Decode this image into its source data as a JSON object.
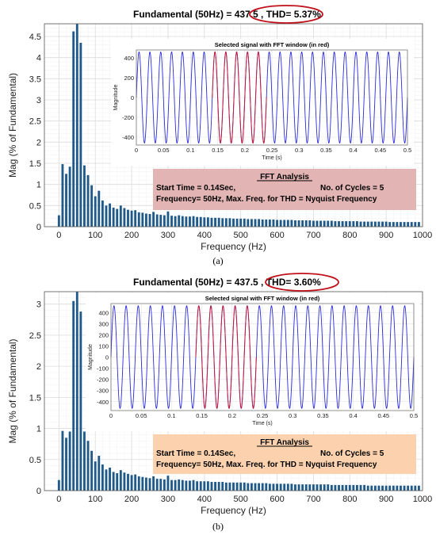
{
  "chart_data": [
    {
      "type": "bar",
      "title_left": "Fundamental (50Hz) = 437.5 ,",
      "title_thd": "THD= 5.37%",
      "xlabel": "Frequency (Hz)",
      "ylabel": "Mag (% of Fundamental)",
      "xlim": [
        -40,
        1000
      ],
      "ylim": [
        0,
        4.8
      ],
      "xticks": [
        0,
        100,
        200,
        300,
        400,
        500,
        600,
        700,
        800,
        900,
        1000
      ],
      "yticks": [
        0,
        0.5,
        1,
        1.5,
        2,
        2.5,
        3,
        3.5,
        4,
        4.5
      ],
      "ytick_labels": [
        "0",
        "0.5",
        "1",
        "1.5",
        "2",
        "2.5",
        "3",
        "3.5",
        "4",
        "4.5"
      ],
      "bar_color": "#1f5a8a",
      "x": [
        0,
        10,
        20,
        30,
        40,
        50,
        60,
        70,
        80,
        90,
        100,
        110,
        120,
        130,
        140,
        150,
        160,
        170,
        180,
        190,
        200,
        210,
        220,
        230,
        240,
        250,
        260,
        270,
        280,
        290,
        300,
        310,
        320,
        330,
        340,
        350,
        360,
        370,
        380,
        390,
        400,
        410,
        420,
        430,
        440,
        450,
        460,
        470,
        480,
        490,
        500,
        510,
        520,
        530,
        540,
        550,
        560,
        570,
        580,
        590,
        600,
        610,
        620,
        630,
        640,
        650,
        660,
        670,
        680,
        690,
        700,
        710,
        720,
        730,
        740,
        750,
        760,
        770,
        780,
        790,
        800,
        810,
        820,
        830,
        840,
        850,
        860,
        870,
        880,
        890,
        900,
        910,
        920,
        930,
        940,
        950,
        960,
        970,
        980,
        990
      ],
      "values": [
        0.27,
        1.48,
        1.25,
        1.42,
        4.62,
        4.8,
        4.35,
        1.45,
        1.22,
        0.98,
        0.72,
        0.85,
        0.62,
        0.5,
        0.55,
        0.45,
        0.42,
        0.5,
        0.44,
        0.4,
        0.38,
        0.39,
        0.34,
        0.33,
        0.31,
        0.3,
        0.35,
        0.29,
        0.28,
        0.27,
        0.36,
        0.26,
        0.25,
        0.27,
        0.25,
        0.24,
        0.24,
        0.25,
        0.23,
        0.23,
        0.22,
        0.22,
        0.21,
        0.21,
        0.21,
        0.2,
        0.2,
        0.2,
        0.19,
        0.19,
        0.19,
        0.19,
        0.18,
        0.18,
        0.18,
        0.18,
        0.17,
        0.17,
        0.17,
        0.17,
        0.16,
        0.16,
        0.16,
        0.16,
        0.16,
        0.15,
        0.15,
        0.15,
        0.15,
        0.15,
        0.14,
        0.14,
        0.14,
        0.14,
        0.14,
        0.14,
        0.13,
        0.13,
        0.13,
        0.13,
        0.13,
        0.13,
        0.13,
        0.12,
        0.12,
        0.12,
        0.12,
        0.12,
        0.12,
        0.12,
        0.12,
        0.11,
        0.11,
        0.11,
        0.11,
        0.11,
        0.11,
        0.11,
        0.11,
        0.11
      ],
      "inset": {
        "title": "Selected signal with FFT window (in red)",
        "xlabel": "Time (s)",
        "ylabel": "Magnitude",
        "xlim": [
          0,
          0.5
        ],
        "ylim": [
          -480,
          480
        ],
        "xticks": [
          "0",
          "0.05",
          "0.1",
          "0.15",
          "0.2",
          "0.25",
          "0.3",
          "0.35",
          "0.4",
          "0.45",
          "0.5"
        ],
        "yticks": [
          "400",
          "200",
          "0",
          "-200",
          "-400"
        ],
        "amplitude": 460,
        "frequency_hz": 50,
        "window_start": 0.14,
        "window_end": 0.24,
        "signal_color": "#2b2bdc",
        "window_color": "#c41a3a"
      },
      "box": {
        "heading": "FFT Analysis",
        "line1_left": "Start Time = 0.14Sec,",
        "line1_right": "No. of Cycles = 5",
        "line2": "Frequency= 50Hz,  Max. Freq. for THD = Nyquist Frequency",
        "background": "#e3b4b4"
      },
      "caption": "(a)"
    },
    {
      "type": "bar",
      "title_left": "Fundamental  (50Hz) = 437.5 ,",
      "title_thd": "THD= 3.60%",
      "xlabel": "Frequency (Hz)",
      "ylabel": "Mag (% of Fundamental)",
      "xlim": [
        -40,
        1000
      ],
      "ylim": [
        0,
        3.2
      ],
      "xticks": [
        0,
        100,
        200,
        300,
        400,
        500,
        600,
        700,
        800,
        900,
        1000
      ],
      "yticks": [
        0,
        0.5,
        1,
        1.5,
        2,
        2.5,
        3
      ],
      "ytick_labels": [
        "0",
        "0.5",
        "1",
        "1.5",
        "2",
        "2.5",
        "3"
      ],
      "bar_color": "#1f5a8a",
      "x": [
        0,
        10,
        20,
        30,
        40,
        50,
        60,
        70,
        80,
        90,
        100,
        110,
        120,
        130,
        140,
        150,
        160,
        170,
        180,
        190,
        200,
        210,
        220,
        230,
        240,
        250,
        260,
        270,
        280,
        290,
        300,
        310,
        320,
        330,
        340,
        350,
        360,
        370,
        380,
        390,
        400,
        410,
        420,
        430,
        440,
        450,
        460,
        470,
        480,
        490,
        500,
        510,
        520,
        530,
        540,
        550,
        560,
        570,
        580,
        590,
        600,
        610,
        620,
        630,
        640,
        650,
        660,
        670,
        680,
        690,
        700,
        710,
        720,
        730,
        740,
        750,
        760,
        770,
        780,
        790,
        800,
        810,
        820,
        830,
        840,
        850,
        860,
        870,
        880,
        890,
        900,
        910,
        920,
        930,
        940,
        950,
        960,
        970,
        980,
        990
      ],
      "values": [
        0.17,
        0.96,
        0.85,
        0.95,
        3.05,
        3.2,
        2.88,
        0.95,
        0.8,
        0.64,
        0.47,
        0.56,
        0.42,
        0.34,
        0.37,
        0.3,
        0.28,
        0.33,
        0.29,
        0.27,
        0.25,
        0.26,
        0.23,
        0.22,
        0.21,
        0.2,
        0.23,
        0.19,
        0.19,
        0.18,
        0.24,
        0.17,
        0.17,
        0.18,
        0.17,
        0.16,
        0.16,
        0.17,
        0.15,
        0.15,
        0.15,
        0.15,
        0.14,
        0.14,
        0.14,
        0.14,
        0.13,
        0.13,
        0.13,
        0.13,
        0.13,
        0.13,
        0.12,
        0.12,
        0.12,
        0.12,
        0.12,
        0.12,
        0.11,
        0.11,
        0.11,
        0.11,
        0.11,
        0.11,
        0.11,
        0.1,
        0.1,
        0.1,
        0.1,
        0.1,
        0.1,
        0.1,
        0.1,
        0.1,
        0.1,
        0.09,
        0.09,
        0.09,
        0.09,
        0.09,
        0.09,
        0.09,
        0.09,
        0.09,
        0.09,
        0.08,
        0.08,
        0.08,
        0.08,
        0.08,
        0.08,
        0.08,
        0.08,
        0.08,
        0.08,
        0.08,
        0.08,
        0.08,
        0.08,
        0.08
      ],
      "inset": {
        "title": "Selected signal with FFT window (in red)",
        "xlabel": "Time (s)",
        "ylabel": "Magnitude",
        "xlim": [
          0,
          0.5
        ],
        "ylim": [
          -480,
          480
        ],
        "xticks": [
          "0",
          "0.05",
          "0.1",
          "0.15",
          "0.2",
          "0.25",
          "0.3",
          "0.35",
          "0.4",
          "0.45",
          "0.5"
        ],
        "yticks": [
          "400",
          "300",
          "200",
          "100",
          "0",
          "-100",
          "-200",
          "-300",
          "-400"
        ],
        "amplitude": 460,
        "frequency_hz": 50,
        "window_start": 0.14,
        "window_end": 0.24,
        "signal_color": "#2b2bdc",
        "window_color": "#c41a3a"
      },
      "box": {
        "heading": "FFT Analysis",
        "line1_left": "Start Time = 0.14Sec,",
        "line1_right": "No. of Cycles = 5",
        "line2": "Frequency= 50Hz,  Max. Freq. for THD = Nyquist Frequency",
        "background": "#fbd2ad"
      },
      "caption": "(b)"
    }
  ]
}
